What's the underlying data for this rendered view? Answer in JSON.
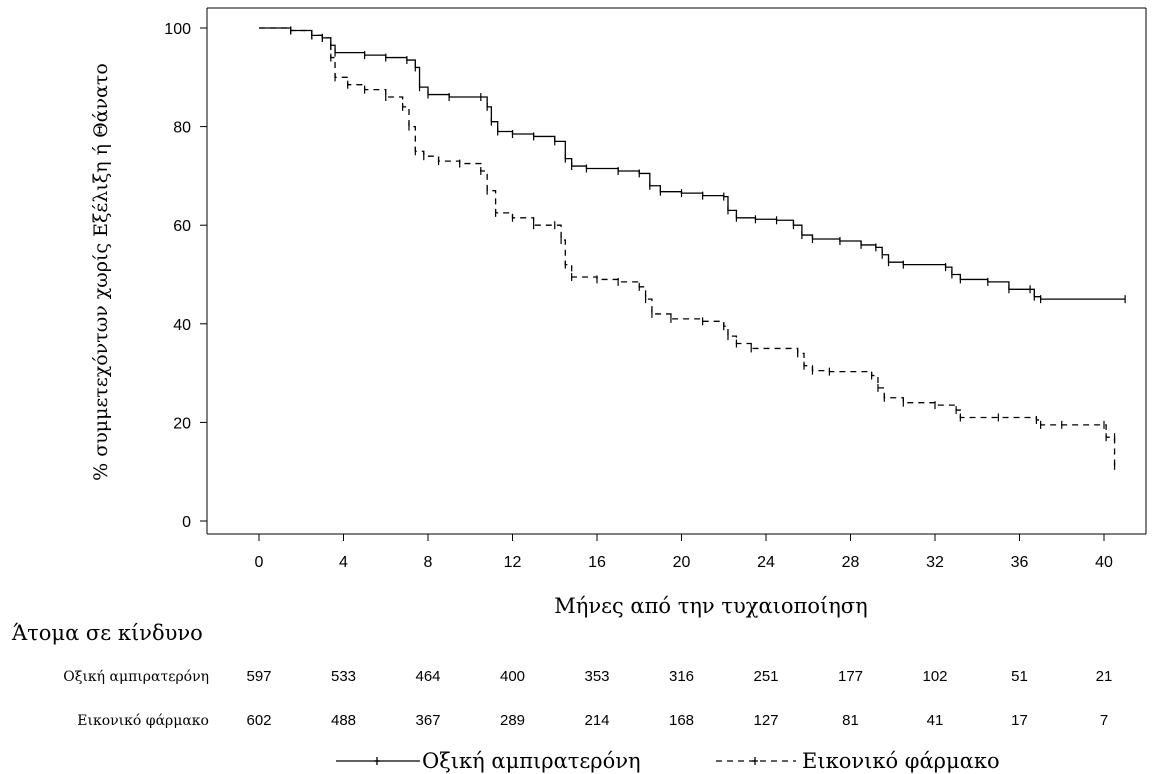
{
  "chart_data": {
    "type": "line",
    "title": "",
    "xlabel": "Μήνες από την τυχαιοποίηση",
    "ylabel": "% συμμετεχόντων χωρίς Εξέλιξη ή Θάνατο",
    "xlim": [
      -3,
      41.5
    ],
    "ylim": [
      -2,
      103
    ],
    "x_ticks": [
      0,
      4,
      8,
      12,
      16,
      20,
      24,
      28,
      32,
      36,
      40
    ],
    "y_ticks": [
      0,
      20,
      40,
      60,
      80,
      100
    ],
    "grid": false,
    "legend_position": "bottom",
    "series": [
      {
        "name": "Οξική αμπιρατερόνη",
        "line_style": "solid",
        "color": "#000000",
        "points": [
          [
            0,
            100
          ],
          [
            1.5,
            99.5
          ],
          [
            2.5,
            98.5
          ],
          [
            3,
            98
          ],
          [
            3.4,
            96.5
          ],
          [
            3.6,
            95
          ],
          [
            5,
            94.5
          ],
          [
            6,
            94
          ],
          [
            7,
            93.5
          ],
          [
            7.4,
            92
          ],
          [
            7.6,
            88
          ],
          [
            8,
            86.5
          ],
          [
            9,
            86
          ],
          [
            10.5,
            86
          ],
          [
            10.8,
            84
          ],
          [
            11,
            81
          ],
          [
            11.3,
            79
          ],
          [
            12,
            78.5
          ],
          [
            13,
            78
          ],
          [
            14,
            77
          ],
          [
            14.5,
            73.5
          ],
          [
            14.8,
            72
          ],
          [
            15.5,
            71.5
          ],
          [
            17,
            71
          ],
          [
            18,
            70.5
          ],
          [
            18.5,
            68
          ],
          [
            19,
            66.8
          ],
          [
            20,
            66.5
          ],
          [
            21,
            66
          ],
          [
            22,
            65.8
          ],
          [
            22.2,
            63
          ],
          [
            22.6,
            61.5
          ],
          [
            23.5,
            61.2
          ],
          [
            24.5,
            61
          ],
          [
            25.3,
            60
          ],
          [
            25.7,
            58
          ],
          [
            26.2,
            57.2
          ],
          [
            27.5,
            56.8
          ],
          [
            28.5,
            56
          ],
          [
            29.2,
            55.5
          ],
          [
            29.5,
            54
          ],
          [
            29.8,
            52.5
          ],
          [
            30.5,
            52
          ],
          [
            32.5,
            51.5
          ],
          [
            32.8,
            50
          ],
          [
            33.2,
            49
          ],
          [
            34.5,
            48.5
          ],
          [
            35.5,
            47
          ],
          [
            36.5,
            47
          ],
          [
            36.7,
            45.5
          ],
          [
            37,
            45
          ],
          [
            41,
            45
          ]
        ]
      },
      {
        "name": "Εικονικό φάρμακο",
        "line_style": "dashed",
        "color": "#000000",
        "points": [
          [
            0,
            100
          ],
          [
            1.5,
            99.5
          ],
          [
            2.5,
            98.5
          ],
          [
            3,
            98
          ],
          [
            3.4,
            94
          ],
          [
            3.6,
            90
          ],
          [
            4.2,
            88.5
          ],
          [
            5,
            87.5
          ],
          [
            6,
            86
          ],
          [
            6.8,
            84
          ],
          [
            7.1,
            80
          ],
          [
            7.4,
            75
          ],
          [
            7.8,
            74
          ],
          [
            8.5,
            73
          ],
          [
            9.5,
            72.5
          ],
          [
            10.5,
            71
          ],
          [
            10.8,
            67
          ],
          [
            11.2,
            62.5
          ],
          [
            12,
            61.5
          ],
          [
            13,
            60
          ],
          [
            14,
            60
          ],
          [
            14.3,
            57
          ],
          [
            14.5,
            52
          ],
          [
            14.8,
            49.5
          ],
          [
            16,
            49
          ],
          [
            17,
            48.5
          ],
          [
            18,
            47.5
          ],
          [
            18.3,
            45
          ],
          [
            18.6,
            42
          ],
          [
            19.5,
            41
          ],
          [
            21,
            40.5
          ],
          [
            22,
            39.5
          ],
          [
            22.2,
            37.5
          ],
          [
            22.6,
            36
          ],
          [
            23.3,
            35
          ],
          [
            25.5,
            34
          ],
          [
            25.8,
            31.5
          ],
          [
            26.2,
            30.5
          ],
          [
            27,
            30.3
          ],
          [
            29,
            29.5
          ],
          [
            29.3,
            27
          ],
          [
            29.6,
            25
          ],
          [
            30.5,
            24
          ],
          [
            32,
            23.5
          ],
          [
            33,
            22.5
          ],
          [
            33.2,
            21
          ],
          [
            35,
            21
          ],
          [
            36.8,
            20.5
          ],
          [
            37,
            19.5
          ],
          [
            38,
            19.5
          ],
          [
            40,
            19.5
          ],
          [
            40.1,
            17
          ],
          [
            40.5,
            17
          ],
          [
            40.5,
            11.2
          ]
        ]
      }
    ],
    "at_risk": {
      "title": "Άτομα σε κίνδυνο",
      "months": [
        0,
        4,
        8,
        12,
        16,
        20,
        24,
        28,
        32,
        36,
        40
      ],
      "rows": [
        {
          "label": "Οξική αμπιρατερόνη",
          "values": [
            "597",
            "533",
            "464",
            "400",
            "353",
            "316",
            "251",
            "177",
            "102",
            "51",
            "21"
          ]
        },
        {
          "label": "Εικονικό φάρμακο",
          "values": [
            "602",
            "488",
            "367",
            "289",
            "214",
            "168",
            "127",
            "81",
            "41",
            "17",
            "7"
          ]
        }
      ]
    }
  }
}
